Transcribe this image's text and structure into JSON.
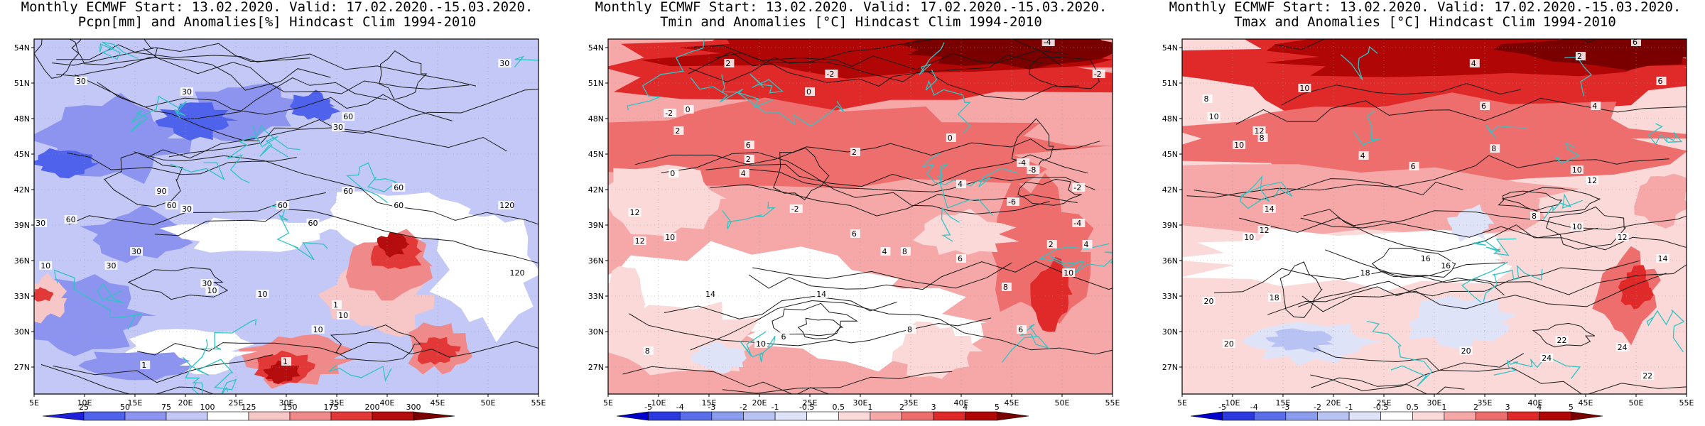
{
  "panels": [
    {
      "id": "pcpn",
      "title_line1": "Monthly ECMWF Start: 13.02.2020. Valid: 17.02.2020.-15.03.2020.",
      "title_line2": "Pcpn[mm] and Anomalies[%] Hindcast Clim 1994-2010",
      "colorbar": {
        "labels": [
          "25",
          "50",
          "75",
          "100",
          "125",
          "150",
          "175",
          "200",
          "300"
        ],
        "colors": [
          "#1f1fd9",
          "#4f62ec",
          "#8c94f0",
          "#c3c8f7",
          "#ffffff",
          "#f7c6c6",
          "#f08a8a",
          "#e23838",
          "#b50d0d",
          "#7a0000"
        ]
      },
      "contour_labels": [
        "30",
        "60",
        "30",
        "30",
        "60",
        "60",
        "60",
        "60",
        "30",
        "90",
        "60",
        "60",
        "120",
        "30",
        "10",
        "30",
        "30",
        "10",
        "10",
        "1",
        "1",
        "10",
        "30",
        "60",
        "120",
        "30",
        "1",
        "10"
      ]
    },
    {
      "id": "tmin",
      "title_line1": "Monthly ECMWF Start: 13.02.2020. Valid: 17.02.2020.-15.03.2020.",
      "title_line2": "Tmin and Anomalies [°C] Hindcast Clim 1994-2010",
      "colorbar": {
        "labels": [
          "-5",
          "-4",
          "-3",
          "-2",
          "-1",
          "-0.5",
          "0.5",
          "1",
          "2",
          "3",
          "4",
          "5"
        ],
        "colors": [
          "#0000cc",
          "#2a3ae0",
          "#5a6ee9",
          "#8a9ced",
          "#b9c3f3",
          "#dfe3f8",
          "#ffffff",
          "#fbd9d9",
          "#f6a8a8",
          "#ee6e6e",
          "#e02a2a",
          "#b00606",
          "#7a0000"
        ]
      },
      "contour_labels": [
        "-4",
        "-2",
        "2",
        "-2",
        "0",
        "-2",
        "0",
        "2",
        "0",
        "6",
        "4",
        "2",
        "0",
        "-4",
        "-8",
        "2",
        "4",
        "6",
        "8",
        "10",
        "12",
        "-2",
        "-6",
        "-4",
        "4",
        "6",
        "8",
        "14",
        "12",
        "10",
        "8",
        "6",
        "14",
        "10",
        "8",
        "6",
        "4",
        "2",
        "-2"
      ]
    },
    {
      "id": "tmax",
      "title_line1": "Monthly ECMWF Start: 13.02.2020. Valid: 17.02.2020.-15.03.2020.",
      "title_line2": "Tmax and Anomalies [°C] Hindcast Clim 1994-2010",
      "colorbar": {
        "labels": [
          "-5",
          "-4",
          "-3",
          "-2",
          "-1",
          "-0.5",
          "0.5",
          "1",
          "2",
          "3",
          "4",
          "5"
        ],
        "colors": [
          "#0000cc",
          "#2a3ae0",
          "#5a6ee9",
          "#8a9ced",
          "#b9c3f3",
          "#dfe3f8",
          "#ffffff",
          "#fbd9d9",
          "#f6a8a8",
          "#ee6e6e",
          "#e02a2a",
          "#b00606",
          "#7a0000"
        ]
      },
      "contour_labels": [
        "6",
        "2",
        "4",
        "6",
        "8",
        "10",
        "12",
        "10",
        "8",
        "10",
        "6",
        "4",
        "8",
        "10",
        "12",
        "14",
        "12",
        "10",
        "18",
        "16",
        "18",
        "20",
        "22",
        "24",
        "20",
        "16",
        "14",
        "12",
        "10",
        "8",
        "6",
        "4",
        "20",
        "22",
        "24"
      ]
    }
  ],
  "axes": {
    "lon_ticks": [
      "5E",
      "10E",
      "15E",
      "20E",
      "25E",
      "30E",
      "35E",
      "40E",
      "45E",
      "50E",
      "55E"
    ],
    "lat_ticks": [
      "54N",
      "51N",
      "48N",
      "45N",
      "42N",
      "39N",
      "36N",
      "33N",
      "30N",
      "27N"
    ]
  },
  "colors": {
    "coastline": "#2fc4c4",
    "contour": "#1a1a1a",
    "grid": "#999999"
  }
}
